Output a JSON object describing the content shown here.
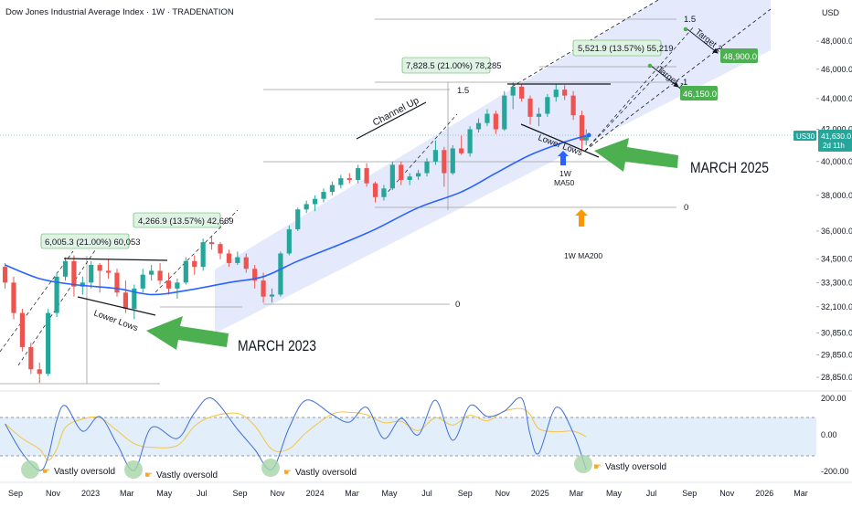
{
  "header": {
    "title": "Dow Jones Industrial Average Index · 1W · TRADENATION",
    "currency": "USD"
  },
  "colors": {
    "up": "#26a69a",
    "down": "#ef5350",
    "ma50": "#2962ff",
    "channel_fill": "#dfe6fb",
    "label_green": "#4caf50",
    "rsi_line": "#3f6fd8",
    "rsi_ma": "#f5c542",
    "rsi_band": "#e3eefb",
    "highlight_circle": "#a5d6a7",
    "arrow_green": "#4caf50",
    "arrow_blue": "#2962ff",
    "arrow_orange": "#ff9800"
  },
  "price_axis": {
    "ticks": [
      "48,000.0",
      "46,000.0",
      "44,000.0",
      "42,000.0",
      "40,000.0",
      "38,000.0",
      "36,000.0",
      "34,500.0",
      "33,300.0",
      "32,100.0",
      "30,850.0",
      "29,850.0",
      "28,850.0"
    ],
    "last_price": "41,630.0",
    "symbol_badge": "US30",
    "countdown": "2d 11h"
  },
  "time_axis": {
    "ticks": [
      "Sep",
      "Nov",
      "2023",
      "Mar",
      "May",
      "Jul",
      "Sep",
      "Nov",
      "2024",
      "Mar",
      "May",
      "Jul",
      "Sep",
      "Nov",
      "2025",
      "Mar",
      "May",
      "Jul",
      "Sep",
      "Nov",
      "2026",
      "Mar"
    ]
  },
  "rsi_axis": {
    "ticks": [
      "200.00",
      "0.00",
      "-200.00"
    ]
  },
  "annotations": {
    "measure_2023_full": "6,005.3 (21.00%) 60,053",
    "measure_2023_partial": "4,266.9 (13.57%) 42,669",
    "measure_2024_full": "7,828.5 (21.00%) 78,285",
    "measure_2025_partial": "5,521.9 (13.57%) 55,219",
    "fib_1_5_a": "1.5",
    "fib_0_a": "0",
    "fib_1_5_b": "1.5",
    "fib_1_b": "1",
    "fib_0_b": "0",
    "channel_up": "Channel Up",
    "lower_lows_2023": "Lower Lows",
    "lower_lows_2025": "Lower Lows",
    "march_2023": "MARCH 2023",
    "march_2025": "MARCH 2025",
    "ma50_label_line1": "1W",
    "ma50_label_line2": "MA50",
    "ma200_label": "1W MA200",
    "target1_label": "Target 1",
    "target2_label": "Target 2",
    "target1_value": "46,150.0",
    "target2_value": "48,900.0",
    "oversold": [
      "Vastly oversold",
      "Vastly oversold",
      "Vastly oversold",
      "Vastly oversold"
    ]
  },
  "chart_data": {
    "type": "candlestick",
    "title": "Dow Jones Industrial Average Index · 1W · TRADENATION",
    "xlabel": "",
    "ylabel": "USD",
    "ylim": [
      28400,
      49600
    ],
    "x_range": [
      "2022-08",
      "2026-03"
    ],
    "grid": false,
    "series": [
      {
        "name": "price",
        "points": [
          [
            "2022-08-15",
            34100,
            34300,
            33000,
            33300
          ],
          [
            "2022-08-29",
            33300,
            33600,
            31500,
            31800
          ],
          [
            "2022-09-12",
            31800,
            32000,
            30000,
            30200
          ],
          [
            "2022-09-26",
            30200,
            30400,
            29000,
            29200
          ],
          [
            "2022-10-10",
            29200,
            29500,
            28600,
            29000
          ],
          [
            "2022-10-24",
            29000,
            32000,
            28900,
            31800
          ],
          [
            "2022-11-07",
            31800,
            33800,
            31600,
            33600
          ],
          [
            "2022-11-21",
            33600,
            34600,
            33400,
            34400
          ],
          [
            "2022-12-05",
            34400,
            34700,
            32600,
            33100
          ],
          [
            "2022-12-19",
            33100,
            33600,
            32700,
            33300
          ],
          [
            "2023-01-02",
            33300,
            34400,
            33000,
            34200
          ],
          [
            "2023-01-16",
            34200,
            34300,
            32800,
            33900
          ],
          [
            "2023-01-30",
            33900,
            34500,
            33500,
            33800
          ],
          [
            "2023-02-13",
            33800,
            34000,
            32600,
            32800
          ],
          [
            "2023-02-27",
            32800,
            33400,
            31800,
            32000
          ],
          [
            "2023-03-13",
            32000,
            33200,
            31500,
            33000
          ],
          [
            "2023-03-27",
            33000,
            34000,
            32800,
            33700
          ],
          [
            "2023-04-10",
            33700,
            34200,
            33400,
            33900
          ],
          [
            "2023-04-24",
            33900,
            34300,
            33200,
            33400
          ],
          [
            "2023-05-08",
            33400,
            33800,
            32700,
            33000
          ],
          [
            "2023-05-22",
            33000,
            33500,
            32500,
            33300
          ],
          [
            "2023-06-05",
            33300,
            34600,
            33200,
            34400
          ],
          [
            "2023-06-19",
            34400,
            34700,
            33700,
            34100
          ],
          [
            "2023-07-03",
            34100,
            35600,
            33900,
            35400
          ],
          [
            "2023-07-17",
            35400,
            35700,
            35000,
            35300
          ],
          [
            "2023-07-31",
            35300,
            35400,
            34500,
            34800
          ],
          [
            "2023-08-14",
            34800,
            35000,
            34100,
            34300
          ],
          [
            "2023-08-28",
            34300,
            34900,
            34200,
            34600
          ],
          [
            "2023-09-11",
            34600,
            34800,
            33800,
            34000
          ],
          [
            "2023-09-25",
            34000,
            34200,
            33000,
            33400
          ],
          [
            "2023-10-09",
            33400,
            33800,
            32300,
            32600
          ],
          [
            "2023-10-23",
            32600,
            33000,
            32300,
            32700
          ],
          [
            "2023-11-06",
            32700,
            34900,
            32600,
            34800
          ],
          [
            "2023-11-20",
            34800,
            36300,
            34700,
            36100
          ],
          [
            "2023-12-04",
            36100,
            37300,
            36000,
            37200
          ],
          [
            "2023-12-18",
            37200,
            37700,
            37000,
            37500
          ],
          [
            "2024-01-01",
            37500,
            38000,
            37100,
            37800
          ],
          [
            "2024-01-15",
            37800,
            38400,
            37600,
            38200
          ],
          [
            "2024-01-29",
            38200,
            38800,
            38000,
            38600
          ],
          [
            "2024-02-12",
            38600,
            39200,
            38400,
            39000
          ],
          [
            "2024-02-26",
            39000,
            39300,
            38700,
            38900
          ],
          [
            "2024-03-11",
            38900,
            39800,
            38700,
            39600
          ],
          [
            "2024-03-25",
            39600,
            39900,
            38500,
            38700
          ],
          [
            "2024-04-08",
            38700,
            38800,
            37600,
            37900
          ],
          [
            "2024-04-22",
            37900,
            38600,
            37700,
            38400
          ],
          [
            "2024-05-06",
            38400,
            40000,
            38300,
            39800
          ],
          [
            "2024-05-20",
            39800,
            40000,
            38600,
            38900
          ],
          [
            "2024-06-03",
            38900,
            39300,
            38600,
            39100
          ],
          [
            "2024-06-17",
            39100,
            39500,
            38900,
            39300
          ],
          [
            "2024-07-01",
            39300,
            40200,
            39100,
            40000
          ],
          [
            "2024-07-15",
            40000,
            41300,
            39800,
            40700
          ],
          [
            "2024-07-29",
            40700,
            40900,
            38500,
            39300
          ],
          [
            "2024-08-12",
            39300,
            41000,
            39200,
            40800
          ],
          [
            "2024-08-26",
            40800,
            41600,
            40400,
            40500
          ],
          [
            "2024-09-09",
            40500,
            42200,
            40300,
            42000
          ],
          [
            "2024-09-23",
            42000,
            42700,
            41800,
            42400
          ],
          [
            "2024-10-07",
            42400,
            43300,
            42200,
            43000
          ],
          [
            "2024-10-21",
            43000,
            43200,
            41700,
            42000
          ],
          [
            "2024-11-04",
            42000,
            44500,
            41900,
            44200
          ],
          [
            "2024-11-18",
            44200,
            45100,
            43300,
            44800
          ],
          [
            "2024-12-02",
            44800,
            45000,
            43800,
            44000
          ],
          [
            "2024-12-16",
            44000,
            44200,
            42300,
            42800
          ],
          [
            "2024-12-30",
            42800,
            43400,
            42200,
            43000
          ],
          [
            "2025-01-13",
            43000,
            44300,
            42800,
            44100
          ],
          [
            "2025-01-27",
            44100,
            45000,
            43800,
            44600
          ],
          [
            "2025-02-10",
            44600,
            44900,
            43900,
            44200
          ],
          [
            "2025-02-24",
            44200,
            44500,
            42600,
            42900
          ],
          [
            "2025-03-10",
            42900,
            43200,
            40700,
            41300
          ],
          [
            "2025-03-17",
            41300,
            42000,
            41000,
            41630
          ]
        ]
      },
      {
        "name": "1W MA50",
        "points": [
          [
            "2022-08-15",
            34200
          ],
          [
            "2022-10-10",
            33500
          ],
          [
            "2022-12-05",
            33200
          ],
          [
            "2023-02-13",
            33000
          ],
          [
            "2023-04-10",
            32700
          ],
          [
            "2023-06-05",
            32900
          ],
          [
            "2023-08-14",
            33300
          ],
          [
            "2023-10-09",
            33600
          ],
          [
            "2023-12-04",
            34400
          ],
          [
            "2024-02-12",
            35300
          ],
          [
            "2024-04-08",
            36100
          ],
          [
            "2024-06-17",
            37300
          ],
          [
            "2024-08-26",
            38200
          ],
          [
            "2024-10-21",
            39300
          ],
          [
            "2024-12-16",
            40400
          ],
          [
            "2025-02-10",
            41200
          ],
          [
            "2025-03-17",
            41600
          ]
        ]
      }
    ],
    "rsi": {
      "ylim": [
        -260,
        240
      ],
      "band": [
        100,
        -100
      ],
      "points": [
        [
          "2022-08-15",
          60
        ],
        [
          "2022-09-12",
          -100
        ],
        [
          "2022-10-10",
          -195
        ],
        [
          "2022-10-24",
          -120
        ],
        [
          "2022-11-07",
          80
        ],
        [
          "2022-11-21",
          160
        ],
        [
          "2022-12-19",
          20
        ],
        [
          "2023-01-16",
          100
        ],
        [
          "2023-02-13",
          -50
        ],
        [
          "2023-03-13",
          -195
        ],
        [
          "2023-04-10",
          40
        ],
        [
          "2023-05-22",
          -20
        ],
        [
          "2023-06-19",
          120
        ],
        [
          "2023-07-17",
          200
        ],
        [
          "2023-08-28",
          30
        ],
        [
          "2023-09-25",
          -80
        ],
        [
          "2023-10-23",
          -190
        ],
        [
          "2023-11-20",
          40
        ],
        [
          "2023-12-18",
          190
        ],
        [
          "2024-01-29",
          110
        ],
        [
          "2024-02-26",
          70
        ],
        [
          "2024-03-25",
          150
        ],
        [
          "2024-04-22",
          -20
        ],
        [
          "2024-05-20",
          90
        ],
        [
          "2024-06-17",
          0
        ],
        [
          "2024-07-15",
          190
        ],
        [
          "2024-08-12",
          -30
        ],
        [
          "2024-09-09",
          160
        ],
        [
          "2024-10-07",
          100
        ],
        [
          "2024-11-04",
          130
        ],
        [
          "2024-12-02",
          200
        ],
        [
          "2024-12-16",
          0
        ],
        [
          "2024-12-30",
          -100
        ],
        [
          "2025-01-27",
          150
        ],
        [
          "2025-02-24",
          10
        ],
        [
          "2025-03-17",
          -190
        ]
      ]
    }
  }
}
